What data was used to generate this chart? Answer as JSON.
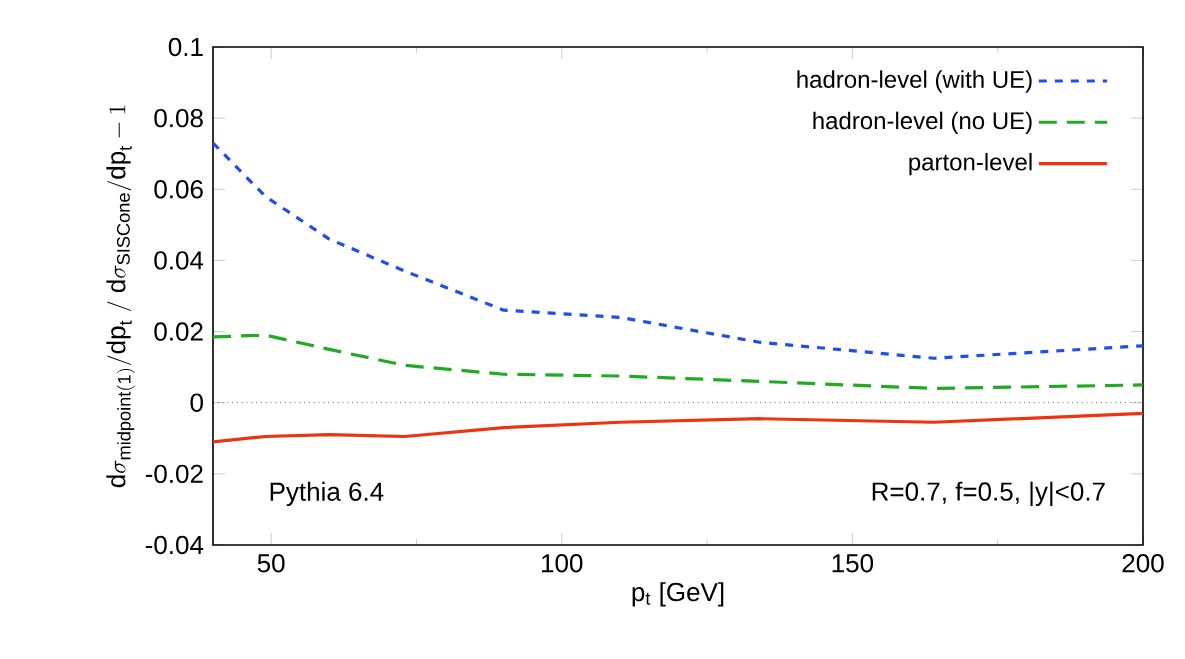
{
  "chart_data": {
    "type": "line",
    "xlabel": "p$_{t}$ [GeV]",
    "ylabel": "\\mathrm{d}\\sigma_{\\mathrm{midpoint(1)}}/\\mathrm{dp}_{\\mathrm{t}}\\ /\\ \\mathrm{d}\\sigma_{\\mathrm{SISCone}}/\\mathrm{dp}_{\\mathrm{t}} - 1",
    "x": [
      40,
      49,
      60,
      73,
      90,
      110,
      134,
      164,
      200
    ],
    "series": [
      {
        "name": "hadron-level (with UE)",
        "color": "#1f4fe8",
        "line_style": "dotted",
        "values": [
          0.073,
          0.058,
          0.046,
          0.037,
          0.026,
          0.024,
          0.017,
          0.0125,
          0.016
        ]
      },
      {
        "name": "hadron-level (no UE)",
        "color": "#22aa22",
        "line_style": "dashed",
        "values": [
          0.0185,
          0.019,
          0.015,
          0.0105,
          0.008,
          0.0075,
          0.006,
          0.004,
          0.005
        ]
      },
      {
        "name": "parton-level",
        "color": "#ee3311",
        "line_style": "solid",
        "values": [
          -0.011,
          -0.0095,
          -0.009,
          -0.0095,
          -0.007,
          -0.0055,
          -0.0045,
          -0.0055,
          -0.003
        ]
      }
    ],
    "xlim": [
      40,
      200
    ],
    "xticks": [
      50,
      100,
      150,
      200
    ],
    "ylim": [
      -0.04,
      0.1
    ],
    "yticks": [
      -0.04,
      -0.02,
      0,
      0.02,
      0.04,
      0.06,
      0.08,
      0.1
    ],
    "ref_lines": [
      {
        "axis": "y",
        "value": 0,
        "line_style": "dotted",
        "color": "#000000"
      }
    ],
    "legend": "top right",
    "annotations": [
      "Pythia 6.4",
      "R=0.7, f=0.5, |y|<0.7"
    ]
  }
}
